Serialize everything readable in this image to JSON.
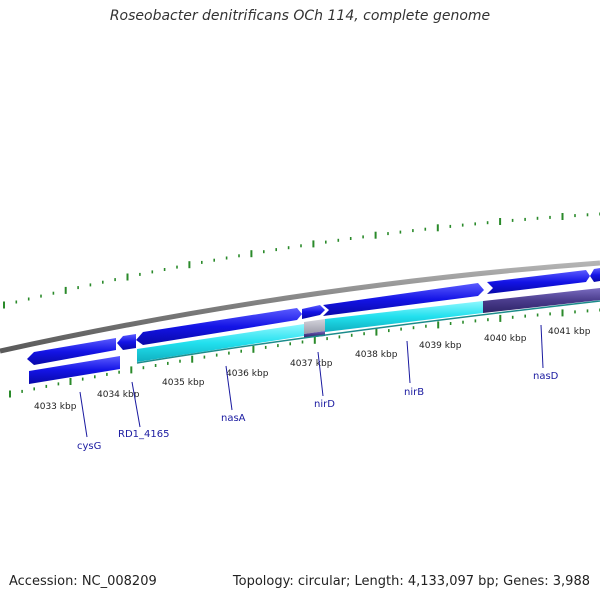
{
  "title": "Roseobacter denitrificans OCh 114, complete genome",
  "footer": {
    "accession": "Accession: NC_008209",
    "summary": "Topology: circular; Length: 4,133,097 bp; Genes: 3,988"
  },
  "colors": {
    "backbone": "#8c8c8c",
    "gene_forward": "#1414e6",
    "gene_reverse": "#1010dd",
    "gene_highlight": "#22e0ee",
    "gene_gap": "#a8a8b8",
    "gene_dark": "#4a3c8c",
    "tick": "#2a8a2a",
    "label": "#1a1aa0"
  },
  "kbp_labels": [
    "4033 kbp",
    "4034 kbp",
    "4035 kbp",
    "4036 kbp",
    "4037 kbp",
    "4038 kbp",
    "4039 kbp",
    "4040 kbp",
    "4041 kbp"
  ],
  "gene_labels": [
    "cysG",
    "RD1_4165",
    "nasA",
    "nirD",
    "nirB",
    "nasD"
  ]
}
